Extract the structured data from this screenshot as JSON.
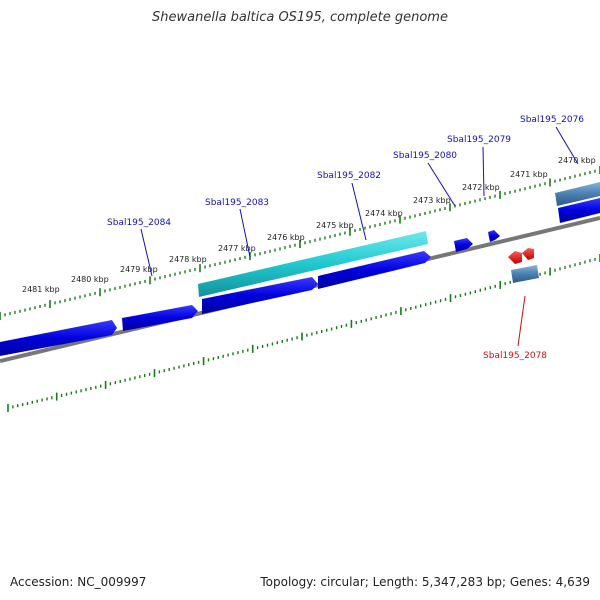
{
  "title": "Shewanella baltica OS195, complete genome",
  "footer": {
    "accession": "Accession: NC_009997",
    "summary": "Topology: circular; Length: 5,347,283 bp; Genes: 4,639"
  },
  "colors": {
    "forward_gene": "#0000dd",
    "highlight_gene": "#20c8d0",
    "reverse_gene": "#ee1111",
    "rna_gene": "#4a7fb0",
    "backbone": "#777777",
    "tick": "#1a7a1a",
    "label_blue": "#1111bb",
    "label_red": "#cc1111"
  },
  "kbp_labels": [
    "2481 kbp",
    "2480 kbp",
    "2479 kbp",
    "2478 kbp",
    "2477 kbp",
    "2476 kbp",
    "2475 kbp",
    "2474 kbp",
    "2473 kbp",
    "2472 kbp",
    "2471 kbp",
    "2470 kbp"
  ],
  "gene_labels": [
    {
      "text": "Sbal195_2084",
      "color": "blue"
    },
    {
      "text": "Sbal195_2083",
      "color": "blue"
    },
    {
      "text": "Sbal195_2082",
      "color": "blue"
    },
    {
      "text": "Sbal195_2080",
      "color": "blue"
    },
    {
      "text": "Sbal195_2079",
      "color": "blue"
    },
    {
      "text": "Sbal195_2076",
      "color": "blue"
    },
    {
      "text": "Sbal195_2078",
      "color": "red"
    }
  ]
}
